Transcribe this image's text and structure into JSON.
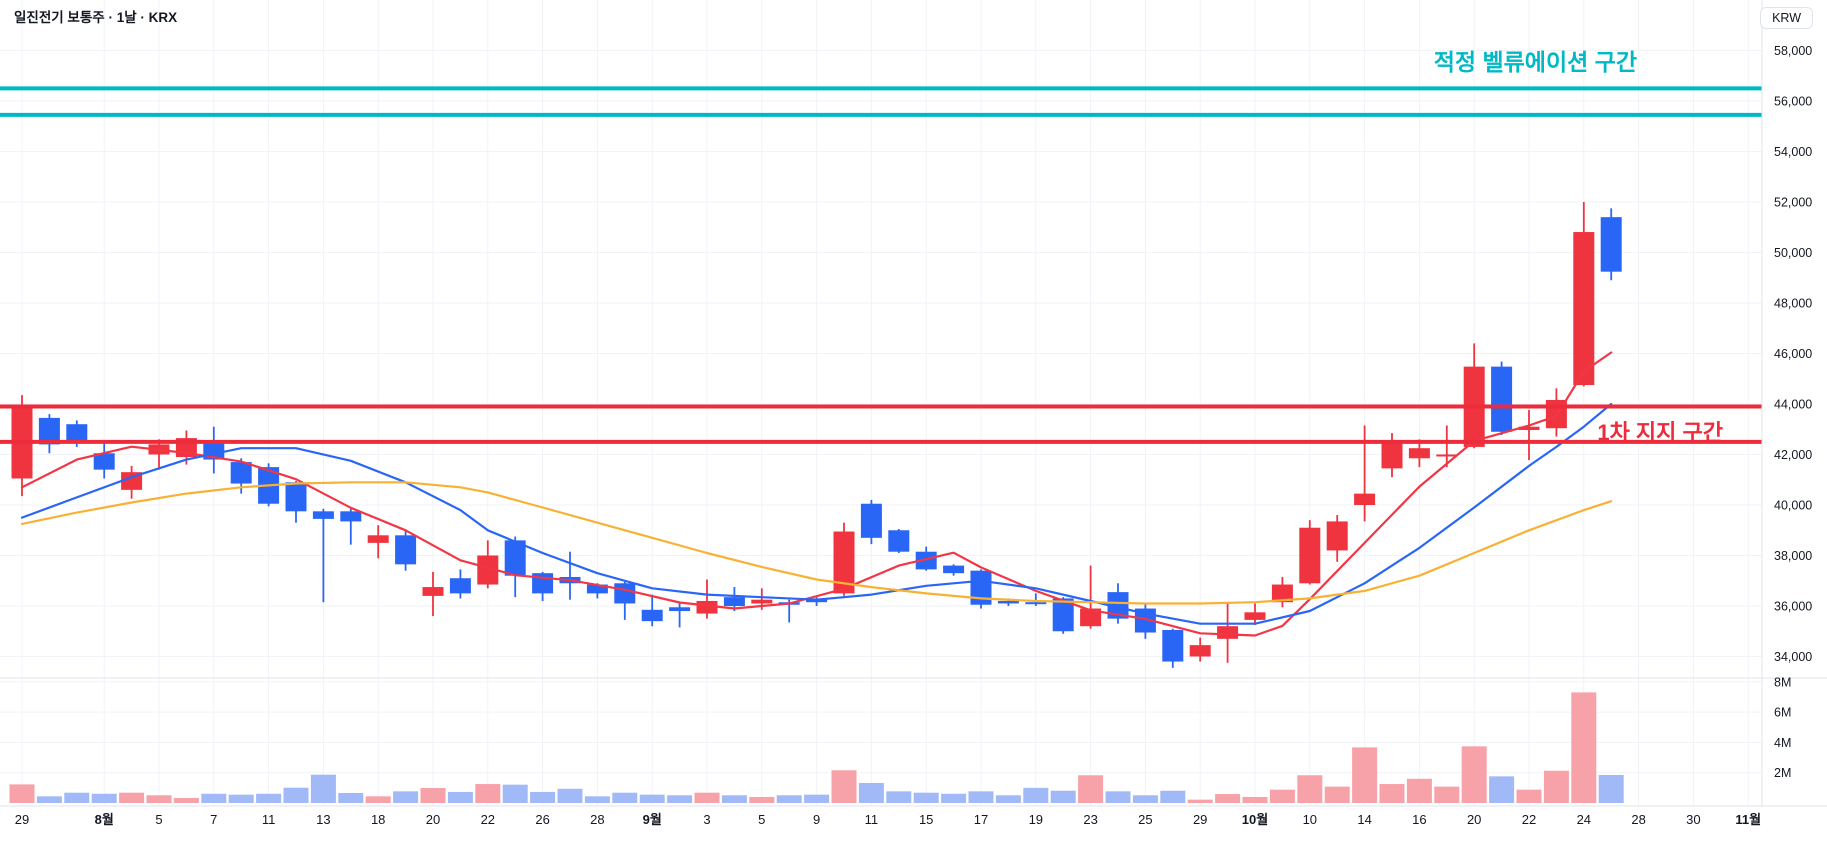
{
  "header": {
    "title": "일진전기 보통주 · 1날 · KRX",
    "currency_button": "KRW"
  },
  "annotations": {
    "valuation_zone": {
      "label": "적정 벨류에이션 구간",
      "upper_price": 56500,
      "lower_price": 55450,
      "color": "#00b9c6"
    },
    "support_zone": {
      "label": "1차 지지 구간",
      "upper_price": 43900,
      "lower_price": 42500,
      "color": "#ee2b3b"
    }
  },
  "chart_data": {
    "type": "candlestick+volume",
    "symbol": "일진전기 보통주",
    "interval": "1날",
    "exchange": "KRX",
    "title": "일진전기 보통주 · 1날 · KRX",
    "price_axis": {
      "unit": "KRW",
      "ticks": [
        34000,
        36000,
        38000,
        40000,
        42000,
        44000,
        46000,
        48000,
        50000,
        52000,
        54000,
        56000,
        58000
      ],
      "min": 33000,
      "max": 58800
    },
    "volume_axis": {
      "ticks_millions": [
        2,
        4,
        6,
        8
      ],
      "labels": [
        "2M",
        "4M",
        "6M",
        "8M"
      ]
    },
    "grid": true,
    "up_color": "#ef333f",
    "down_color": "#2a66f6",
    "up_volume_color": "#f7a1a9",
    "down_volume_color": "#a2b9f8",
    "ma_colors": {
      "fast": "#f23645",
      "mid": "#2a66f6",
      "slow": "#f8b133"
    },
    "columns": [
      "date",
      "open",
      "high",
      "low",
      "close",
      "volume_millions"
    ],
    "candles": [
      [
        "07-29",
        41050,
        44350,
        40350,
        43900,
        1.23
      ],
      [
        "07-30",
        43450,
        43600,
        42050,
        42400,
        0.44
      ],
      [
        "07-31",
        43200,
        43350,
        42300,
        42550,
        0.68
      ],
      [
        "08-01",
        42050,
        42450,
        41050,
        41400,
        0.61
      ],
      [
        "08-04",
        40600,
        41550,
        40250,
        41300,
        0.68
      ],
      [
        "08-05",
        42000,
        42600,
        41400,
        42400,
        0.51
      ],
      [
        "08-06",
        41900,
        42950,
        41600,
        42650,
        0.33
      ],
      [
        "08-07",
        42450,
        43100,
        41250,
        41800,
        0.61
      ],
      [
        "08-08",
        41700,
        41850,
        40450,
        40850,
        0.55
      ],
      [
        "08-11",
        41500,
        41650,
        39950,
        40050,
        0.61
      ],
      [
        "08-12",
        40900,
        40950,
        39300,
        39750,
        1.01
      ],
      [
        "08-13",
        39750,
        39850,
        36150,
        39450,
        1.87
      ],
      [
        "08-14",
        39750,
        39850,
        38430,
        39350,
        0.66
      ],
      [
        "08-18",
        38500,
        39200,
        37890,
        38800,
        0.44
      ],
      [
        "08-19",
        38800,
        39000,
        37400,
        37650,
        0.77
      ],
      [
        "08-20",
        36400,
        37350,
        35600,
        36750,
        0.99
      ],
      [
        "08-21",
        37100,
        37450,
        36300,
        36500,
        0.73
      ],
      [
        "08-22",
        36850,
        38600,
        36700,
        38000,
        1.25
      ],
      [
        "08-25",
        38600,
        38750,
        36350,
        37200,
        1.21
      ],
      [
        "08-26",
        37300,
        37350,
        36200,
        36500,
        0.73
      ],
      [
        "08-27",
        37150,
        38150,
        36250,
        36900,
        0.94
      ],
      [
        "08-28",
        36850,
        36900,
        36300,
        36500,
        0.44
      ],
      [
        "08-29",
        36900,
        36950,
        35450,
        36100,
        0.68
      ],
      [
        "09-01",
        35850,
        36450,
        35200,
        35400,
        0.55
      ],
      [
        "09-02",
        35950,
        36100,
        35150,
        35800,
        0.51
      ],
      [
        "09-03",
        35700,
        37050,
        35500,
        36200,
        0.68
      ],
      [
        "09-04",
        36350,
        36750,
        35800,
        36000,
        0.51
      ],
      [
        "09-05",
        36100,
        36700,
        35850,
        36250,
        0.4
      ],
      [
        "09-08",
        36150,
        36250,
        35350,
        36050,
        0.51
      ],
      [
        "09-09",
        36300,
        36350,
        36000,
        36150,
        0.55
      ],
      [
        "09-10",
        36500,
        39300,
        36400,
        38950,
        2.16
      ],
      [
        "09-11",
        40050,
        40200,
        38450,
        38700,
        1.32
      ],
      [
        "09-12",
        39000,
        39050,
        38100,
        38150,
        0.77
      ],
      [
        "09-15",
        38150,
        38350,
        37400,
        37450,
        0.68
      ],
      [
        "09-16",
        37600,
        37650,
        37200,
        37300,
        0.61
      ],
      [
        "09-17",
        37400,
        37450,
        35900,
        36050,
        0.77
      ],
      [
        "09-18",
        36200,
        36300,
        36000,
        36100,
        0.51
      ],
      [
        "09-19",
        36150,
        36500,
        36000,
        36100,
        1.0
      ],
      [
        "09-22",
        36300,
        36350,
        34900,
        35000,
        0.81
      ],
      [
        "09-23",
        35200,
        37600,
        35100,
        35900,
        1.83
      ],
      [
        "09-24",
        36550,
        36900,
        35300,
        35500,
        0.77
      ],
      [
        "09-25",
        35900,
        36100,
        34700,
        34950,
        0.51
      ],
      [
        "09-26",
        35050,
        35100,
        33550,
        33800,
        0.81
      ],
      [
        "09-29",
        34000,
        34750,
        33800,
        34450,
        0.22
      ],
      [
        "09-30",
        34700,
        36150,
        33750,
        35200,
        0.59
      ],
      [
        "10-01",
        35450,
        36100,
        35250,
        35750,
        0.4
      ],
      [
        "10-02",
        36150,
        37150,
        35950,
        36850,
        0.88
      ],
      [
        "10-10",
        36900,
        39400,
        36850,
        39100,
        1.83
      ],
      [
        "10-13",
        38200,
        39600,
        37750,
        39350,
        1.08
      ],
      [
        "10-14",
        40000,
        43150,
        39350,
        40450,
        3.67
      ],
      [
        "10-15",
        41450,
        42850,
        41100,
        42500,
        1.25
      ],
      [
        "10-16",
        41850,
        42600,
        41500,
        42250,
        1.6
      ],
      [
        "10-17",
        41950,
        43150,
        41500,
        42000,
        1.08
      ],
      [
        "10-20",
        42300,
        46400,
        42250,
        45480,
        3.74
      ],
      [
        "10-21",
        45480,
        45680,
        42770,
        42900,
        1.76
      ],
      [
        "10-22",
        42970,
        43760,
        41780,
        43100,
        0.88
      ],
      [
        "10-23",
        43040,
        44620,
        42710,
        44160,
        2.13
      ],
      [
        "10-24",
        44750,
        52000,
        44700,
        50810,
        7.3
      ],
      [
        "10-27",
        51400,
        51750,
        48900,
        49240,
        1.85
      ]
    ],
    "x_ticks": [
      {
        "label": "29",
        "i": 0,
        "bold": false
      },
      {
        "label": "8월",
        "i": 3,
        "bold": true
      },
      {
        "label": "5",
        "i": 5,
        "bold": false
      },
      {
        "label": "7",
        "i": 7,
        "bold": false
      },
      {
        "label": "11",
        "i": 9,
        "bold": false
      },
      {
        "label": "13",
        "i": 11,
        "bold": false
      },
      {
        "label": "18",
        "i": 13,
        "bold": false
      },
      {
        "label": "20",
        "i": 15,
        "bold": false
      },
      {
        "label": "22",
        "i": 17,
        "bold": false
      },
      {
        "label": "26",
        "i": 19,
        "bold": false
      },
      {
        "label": "28",
        "i": 21,
        "bold": false
      },
      {
        "label": "9월",
        "i": 23,
        "bold": true
      },
      {
        "label": "3",
        "i": 25,
        "bold": false
      },
      {
        "label": "5",
        "i": 27,
        "bold": false
      },
      {
        "label": "9",
        "i": 29,
        "bold": false
      },
      {
        "label": "11",
        "i": 31,
        "bold": false
      },
      {
        "label": "15",
        "i": 33,
        "bold": false
      },
      {
        "label": "17",
        "i": 35,
        "bold": false
      },
      {
        "label": "19",
        "i": 37,
        "bold": false
      },
      {
        "label": "23",
        "i": 39,
        "bold": false
      },
      {
        "label": "25",
        "i": 41,
        "bold": false
      },
      {
        "label": "29",
        "i": 43,
        "bold": false
      },
      {
        "label": "10월",
        "i": 45,
        "bold": true
      },
      {
        "label": "10",
        "i": 47,
        "bold": false
      },
      {
        "label": "14",
        "i": 49,
        "bold": false
      },
      {
        "label": "16",
        "i": 51,
        "bold": false
      },
      {
        "label": "20",
        "i": 53,
        "bold": false
      },
      {
        "label": "22",
        "i": 55,
        "bold": false
      },
      {
        "label": "24",
        "i": 57,
        "bold": false
      },
      {
        "label": "28",
        "i": 59,
        "bold": false
      },
      {
        "label": "30",
        "i": 61,
        "bold": false
      },
      {
        "label": "11월",
        "i": 63,
        "bold": true
      }
    ],
    "moving_averages": [
      {
        "name": "fast",
        "color": "#f23645",
        "points": [
          [
            0,
            40700
          ],
          [
            2,
            41800
          ],
          [
            4,
            42310
          ],
          [
            6,
            42060
          ],
          [
            8,
            41720
          ],
          [
            10,
            41020
          ],
          [
            12,
            39890
          ],
          [
            14,
            39000
          ],
          [
            16,
            37810
          ],
          [
            18,
            37220
          ],
          [
            20,
            37020
          ],
          [
            22,
            36640
          ],
          [
            24,
            36140
          ],
          [
            26,
            35900
          ],
          [
            28,
            36100
          ],
          [
            30,
            36680
          ],
          [
            32,
            37600
          ],
          [
            34,
            38110
          ],
          [
            35,
            37530
          ],
          [
            37,
            36600
          ],
          [
            39,
            35830
          ],
          [
            41,
            35490
          ],
          [
            43,
            34920
          ],
          [
            45,
            34830
          ],
          [
            46,
            35210
          ],
          [
            47,
            36270
          ],
          [
            49,
            38500
          ],
          [
            51,
            40730
          ],
          [
            53,
            42540
          ],
          [
            55,
            43150
          ],
          [
            56,
            43530
          ],
          [
            57,
            45290
          ],
          [
            58,
            46040
          ]
        ]
      },
      {
        "name": "mid",
        "color": "#2a66f6",
        "points": [
          [
            0,
            39500
          ],
          [
            2,
            40300
          ],
          [
            4,
            41100
          ],
          [
            6,
            41800
          ],
          [
            8,
            42250
          ],
          [
            10,
            42250
          ],
          [
            12,
            41750
          ],
          [
            14,
            40900
          ],
          [
            16,
            39800
          ],
          [
            17,
            39000
          ],
          [
            19,
            38100
          ],
          [
            21,
            37300
          ],
          [
            23,
            36700
          ],
          [
            25,
            36450
          ],
          [
            27,
            36350
          ],
          [
            29,
            36250
          ],
          [
            31,
            36450
          ],
          [
            33,
            36800
          ],
          [
            35,
            37000
          ],
          [
            37,
            36700
          ],
          [
            39,
            36200
          ],
          [
            41,
            35700
          ],
          [
            43,
            35300
          ],
          [
            45,
            35300
          ],
          [
            47,
            35800
          ],
          [
            49,
            36900
          ],
          [
            51,
            38300
          ],
          [
            53,
            39900
          ],
          [
            55,
            41550
          ],
          [
            56,
            42300
          ],
          [
            57,
            43100
          ],
          [
            58,
            44000
          ]
        ]
      },
      {
        "name": "slow",
        "color": "#f8b133",
        "points": [
          [
            0,
            39250
          ],
          [
            2,
            39700
          ],
          [
            4,
            40100
          ],
          [
            6,
            40450
          ],
          [
            8,
            40700
          ],
          [
            10,
            40850
          ],
          [
            12,
            40900
          ],
          [
            14,
            40900
          ],
          [
            16,
            40700
          ],
          [
            17,
            40500
          ],
          [
            19,
            39900
          ],
          [
            21,
            39300
          ],
          [
            23,
            38700
          ],
          [
            25,
            38100
          ],
          [
            27,
            37550
          ],
          [
            29,
            37050
          ],
          [
            31,
            36750
          ],
          [
            33,
            36500
          ],
          [
            35,
            36300
          ],
          [
            37,
            36200
          ],
          [
            39,
            36150
          ],
          [
            41,
            36100
          ],
          [
            43,
            36100
          ],
          [
            45,
            36150
          ],
          [
            47,
            36300
          ],
          [
            49,
            36600
          ],
          [
            51,
            37200
          ],
          [
            53,
            38100
          ],
          [
            55,
            39000
          ],
          [
            57,
            39800
          ],
          [
            58,
            40150
          ]
        ]
      }
    ],
    "horizontal_lines": [
      {
        "price": 56500,
        "color": "#00b9c6",
        "width": 4,
        "group": "valuation_zone"
      },
      {
        "price": 55450,
        "color": "#00b9c6",
        "width": 4,
        "group": "valuation_zone"
      },
      {
        "price": 43900,
        "color": "#ee2b3b",
        "width": 4,
        "group": "support_zone"
      },
      {
        "price": 42500,
        "color": "#ee2b3b",
        "width": 4,
        "group": "support_zone"
      }
    ],
    "legend_position": "none"
  },
  "layout_colors": {
    "background": "#ffffff",
    "grid": "#f1f3f8",
    "axis_separator": "#e0e3eb",
    "axis_text": "#131722"
  }
}
